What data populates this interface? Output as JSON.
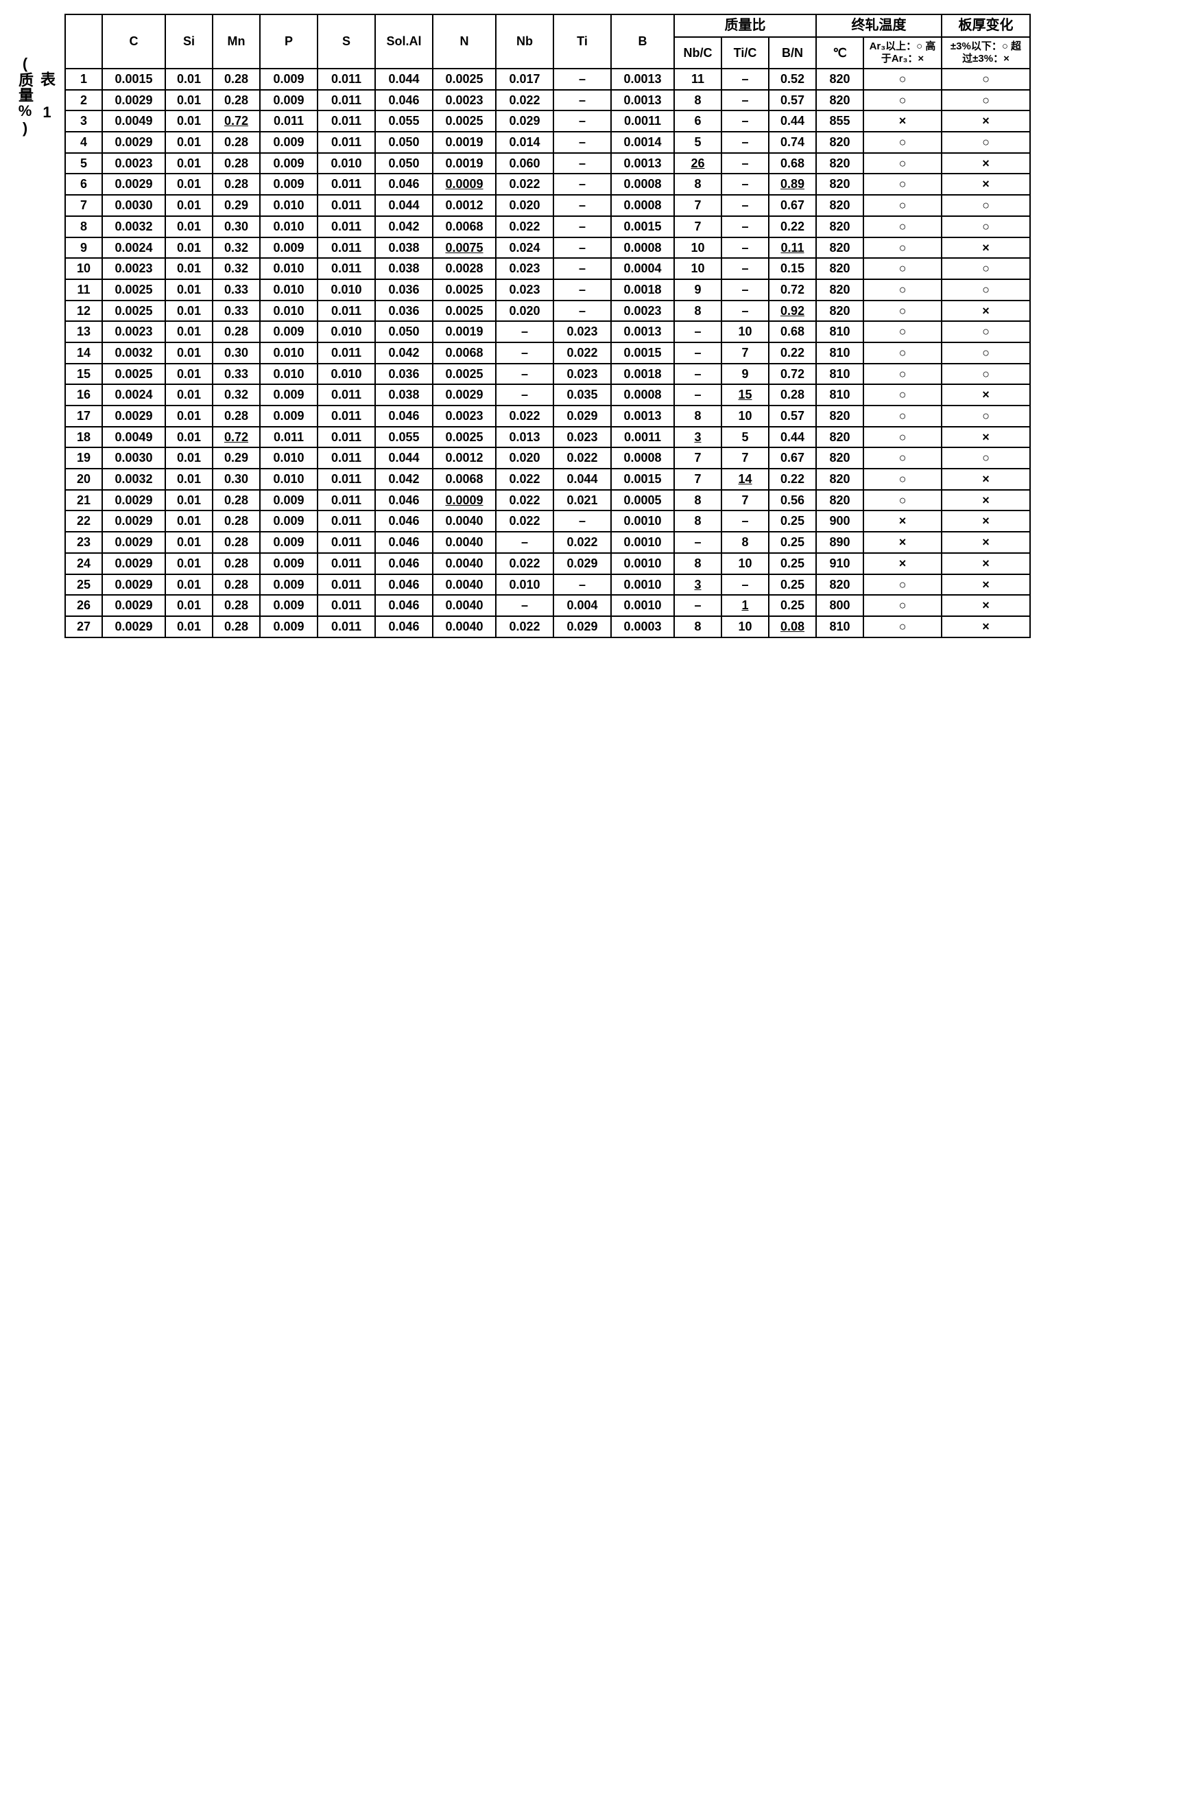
{
  "side": {
    "table_label": "表 1",
    "unit_label": "(质量%)"
  },
  "headers": {
    "row_no": "",
    "c": "C",
    "si": "Si",
    "mn": "Mn",
    "p": "P",
    "s": "S",
    "solal": "Sol.Al",
    "n": "N",
    "nb": "Nb",
    "ti": "Ti",
    "b": "B",
    "ratio_group": "质量比",
    "nbc": "Nb/C",
    "tic": "Ti/C",
    "bn": "B/N",
    "temp_group": "终轧温度",
    "temp_unit": "℃",
    "temp_judge": "Ar₃以上：○\n高于Ar₃：×",
    "thick_group": "板厚变化",
    "thick_judge": "±3%以下：○\n超过±3%：×"
  },
  "rows": [
    {
      "no": "1",
      "c": "0.0015",
      "si": "0.01",
      "mn": "0.28",
      "p": "0.009",
      "s": "0.011",
      "solal": "0.044",
      "n": "0.0025",
      "nb": "0.017",
      "ti": "–",
      "b": "0.0013",
      "nbc": "11",
      "tic": "–",
      "bn": "0.52",
      "temp": "820",
      "j1": "○",
      "j2": "○"
    },
    {
      "no": "2",
      "c": "0.0029",
      "si": "0.01",
      "mn": "0.28",
      "p": "0.009",
      "s": "0.011",
      "solal": "0.046",
      "n": "0.0023",
      "nb": "0.022",
      "ti": "–",
      "b": "0.0013",
      "nbc": "8",
      "tic": "–",
      "bn": "0.57",
      "temp": "820",
      "j1": "○",
      "j2": "○"
    },
    {
      "no": "3",
      "c": "0.0049",
      "si": "0.01",
      "mn": "0.72",
      "mn_u": true,
      "p": "0.011",
      "s": "0.011",
      "solal": "0.055",
      "n": "0.0025",
      "nb": "0.029",
      "ti": "–",
      "b": "0.0011",
      "nbc": "6",
      "tic": "–",
      "bn": "0.44",
      "temp": "855",
      "j1": "×",
      "j2": "×"
    },
    {
      "no": "4",
      "c": "0.0029",
      "si": "0.01",
      "mn": "0.28",
      "p": "0.009",
      "s": "0.011",
      "solal": "0.050",
      "n": "0.0019",
      "nb": "0.014",
      "ti": "–",
      "b": "0.0014",
      "nbc": "5",
      "tic": "–",
      "bn": "0.74",
      "temp": "820",
      "j1": "○",
      "j2": "○"
    },
    {
      "no": "5",
      "c": "0.0023",
      "si": "0.01",
      "mn": "0.28",
      "p": "0.009",
      "s": "0.010",
      "solal": "0.050",
      "n": "0.0019",
      "nb": "0.060",
      "ti": "–",
      "b": "0.0013",
      "nbc": "26",
      "nbc_u": true,
      "tic": "–",
      "bn": "0.68",
      "temp": "820",
      "j1": "○",
      "j2": "×"
    },
    {
      "no": "6",
      "c": "0.0029",
      "si": "0.01",
      "mn": "0.28",
      "p": "0.009",
      "s": "0.011",
      "solal": "0.046",
      "n": "0.0009",
      "n_u": true,
      "nb": "0.022",
      "ti": "–",
      "b": "0.0008",
      "nbc": "8",
      "tic": "–",
      "bn": "0.89",
      "bn_u": true,
      "temp": "820",
      "j1": "○",
      "j2": "×"
    },
    {
      "no": "7",
      "c": "0.0030",
      "si": "0.01",
      "mn": "0.29",
      "p": "0.010",
      "s": "0.011",
      "solal": "0.044",
      "n": "0.0012",
      "nb": "0.020",
      "ti": "–",
      "b": "0.0008",
      "nbc": "7",
      "tic": "–",
      "bn": "0.67",
      "temp": "820",
      "j1": "○",
      "j2": "○"
    },
    {
      "no": "8",
      "c": "0.0032",
      "si": "0.01",
      "mn": "0.30",
      "p": "0.010",
      "s": "0.011",
      "solal": "0.042",
      "n": "0.0068",
      "nb": "0.022",
      "ti": "–",
      "b": "0.0015",
      "nbc": "7",
      "tic": "–",
      "bn": "0.22",
      "temp": "820",
      "j1": "○",
      "j2": "○"
    },
    {
      "no": "9",
      "c": "0.0024",
      "si": "0.01",
      "mn": "0.32",
      "p": "0.009",
      "s": "0.011",
      "solal": "0.038",
      "n": "0.0075",
      "n_u": true,
      "nb": "0.024",
      "ti": "–",
      "b": "0.0008",
      "nbc": "10",
      "tic": "–",
      "bn": "0.11",
      "bn_u": true,
      "temp": "820",
      "j1": "○",
      "j2": "×"
    },
    {
      "no": "10",
      "c": "0.0023",
      "si": "0.01",
      "mn": "0.32",
      "p": "0.010",
      "s": "0.011",
      "solal": "0.038",
      "n": "0.0028",
      "nb": "0.023",
      "ti": "–",
      "b": "0.0004",
      "nbc": "10",
      "tic": "–",
      "bn": "0.15",
      "temp": "820",
      "j1": "○",
      "j2": "○"
    },
    {
      "no": "11",
      "c": "0.0025",
      "si": "0.01",
      "mn": "0.33",
      "p": "0.010",
      "s": "0.010",
      "solal": "0.036",
      "n": "0.0025",
      "nb": "0.023",
      "ti": "–",
      "b": "0.0018",
      "nbc": "9",
      "tic": "–",
      "bn": "0.72",
      "temp": "820",
      "j1": "○",
      "j2": "○"
    },
    {
      "no": "12",
      "c": "0.0025",
      "si": "0.01",
      "mn": "0.33",
      "p": "0.010",
      "s": "0.011",
      "solal": "0.036",
      "n": "0.0025",
      "nb": "0.020",
      "ti": "–",
      "b": "0.0023",
      "nbc": "8",
      "tic": "–",
      "bn": "0.92",
      "bn_u": true,
      "temp": "820",
      "j1": "○",
      "j2": "×"
    },
    {
      "no": "13",
      "c": "0.0023",
      "si": "0.01",
      "mn": "0.28",
      "p": "0.009",
      "s": "0.010",
      "solal": "0.050",
      "n": "0.0019",
      "nb": "–",
      "ti": "0.023",
      "b": "0.0013",
      "nbc": "–",
      "tic": "10",
      "bn": "0.68",
      "temp": "810",
      "j1": "○",
      "j2": "○"
    },
    {
      "no": "14",
      "c": "0.0032",
      "si": "0.01",
      "mn": "0.30",
      "p": "0.010",
      "s": "0.011",
      "solal": "0.042",
      "n": "0.0068",
      "nb": "–",
      "ti": "0.022",
      "b": "0.0015",
      "nbc": "–",
      "tic": "7",
      "bn": "0.22",
      "temp": "810",
      "j1": "○",
      "j2": "○"
    },
    {
      "no": "15",
      "c": "0.0025",
      "si": "0.01",
      "mn": "0.33",
      "p": "0.010",
      "s": "0.010",
      "solal": "0.036",
      "n": "0.0025",
      "nb": "–",
      "ti": "0.023",
      "b": "0.0018",
      "nbc": "–",
      "tic": "9",
      "bn": "0.72",
      "temp": "810",
      "j1": "○",
      "j2": "○"
    },
    {
      "no": "16",
      "c": "0.0024",
      "si": "0.01",
      "mn": "0.32",
      "p": "0.009",
      "s": "0.011",
      "solal": "0.038",
      "n": "0.0029",
      "nb": "–",
      "ti": "0.035",
      "b": "0.0008",
      "nbc": "–",
      "tic": "15",
      "tic_u": true,
      "bn": "0.28",
      "temp": "810",
      "j1": "○",
      "j2": "×"
    },
    {
      "no": "17",
      "c": "0.0029",
      "si": "0.01",
      "mn": "0.28",
      "p": "0.009",
      "s": "0.011",
      "solal": "0.046",
      "n": "0.0023",
      "nb": "0.022",
      "ti": "0.029",
      "b": "0.0013",
      "nbc": "8",
      "tic": "10",
      "bn": "0.57",
      "temp": "820",
      "j1": "○",
      "j2": "○"
    },
    {
      "no": "18",
      "c": "0.0049",
      "si": "0.01",
      "mn": "0.72",
      "mn_u": true,
      "p": "0.011",
      "s": "0.011",
      "solal": "0.055",
      "n": "0.0025",
      "nb": "0.013",
      "ti": "0.023",
      "b": "0.0011",
      "nbc": "3",
      "nbc_u": true,
      "tic": "5",
      "bn": "0.44",
      "temp": "820",
      "j1": "○",
      "j2": "×"
    },
    {
      "no": "19",
      "c": "0.0030",
      "si": "0.01",
      "mn": "0.29",
      "p": "0.010",
      "s": "0.011",
      "solal": "0.044",
      "n": "0.0012",
      "nb": "0.020",
      "ti": "0.022",
      "b": "0.0008",
      "nbc": "7",
      "tic": "7",
      "bn": "0.67",
      "temp": "820",
      "j1": "○",
      "j2": "○"
    },
    {
      "no": "20",
      "c": "0.0032",
      "si": "0.01",
      "mn": "0.30",
      "p": "0.010",
      "s": "0.011",
      "solal": "0.042",
      "n": "0.0068",
      "nb": "0.022",
      "ti": "0.044",
      "b": "0.0015",
      "nbc": "7",
      "tic": "14",
      "tic_u": true,
      "bn": "0.22",
      "temp": "820",
      "j1": "○",
      "j2": "×"
    },
    {
      "no": "21",
      "c": "0.0029",
      "si": "0.01",
      "mn": "0.28",
      "p": "0.009",
      "s": "0.011",
      "solal": "0.046",
      "n": "0.0009",
      "n_u": true,
      "nb": "0.022",
      "ti": "0.021",
      "b": "0.0005",
      "nbc": "8",
      "tic": "7",
      "bn": "0.56",
      "temp": "820",
      "j1": "○",
      "j2": "×"
    },
    {
      "no": "22",
      "c": "0.0029",
      "si": "0.01",
      "mn": "0.28",
      "p": "0.009",
      "s": "0.011",
      "solal": "0.046",
      "n": "0.0040",
      "nb": "0.022",
      "ti": "–",
      "b": "0.0010",
      "nbc": "8",
      "tic": "–",
      "bn": "0.25",
      "temp": "900",
      "j1": "×",
      "j2": "×"
    },
    {
      "no": "23",
      "c": "0.0029",
      "si": "0.01",
      "mn": "0.28",
      "p": "0.009",
      "s": "0.011",
      "solal": "0.046",
      "n": "0.0040",
      "nb": "–",
      "ti": "0.022",
      "b": "0.0010",
      "nbc": "–",
      "tic": "8",
      "bn": "0.25",
      "temp": "890",
      "j1": "×",
      "j2": "×"
    },
    {
      "no": "24",
      "c": "0.0029",
      "si": "0.01",
      "mn": "0.28",
      "p": "0.009",
      "s": "0.011",
      "solal": "0.046",
      "n": "0.0040",
      "nb": "0.022",
      "ti": "0.029",
      "b": "0.0010",
      "nbc": "8",
      "tic": "10",
      "bn": "0.25",
      "temp": "910",
      "j1": "×",
      "j2": "×"
    },
    {
      "no": "25",
      "c": "0.0029",
      "si": "0.01",
      "mn": "0.28",
      "p": "0.009",
      "s": "0.011",
      "solal": "0.046",
      "n": "0.0040",
      "nb": "0.010",
      "ti": "–",
      "b": "0.0010",
      "nbc": "3",
      "nbc_u": true,
      "tic": "–",
      "bn": "0.25",
      "temp": "820",
      "j1": "○",
      "j2": "×"
    },
    {
      "no": "26",
      "c": "0.0029",
      "si": "0.01",
      "mn": "0.28",
      "p": "0.009",
      "s": "0.011",
      "solal": "0.046",
      "n": "0.0040",
      "nb": "–",
      "ti": "0.004",
      "b": "0.0010",
      "nbc": "–",
      "tic": "1",
      "tic_u": true,
      "bn": "0.25",
      "temp": "800",
      "j1": "○",
      "j2": "×"
    },
    {
      "no": "27",
      "c": "0.0029",
      "si": "0.01",
      "mn": "0.28",
      "p": "0.009",
      "s": "0.011",
      "solal": "0.046",
      "n": "0.0040",
      "nb": "0.022",
      "ti": "0.029",
      "b": "0.0003",
      "nbc": "8",
      "tic": "10",
      "bn": "0.08",
      "bn_u": true,
      "temp": "810",
      "j1": "○",
      "j2": "×"
    }
  ]
}
